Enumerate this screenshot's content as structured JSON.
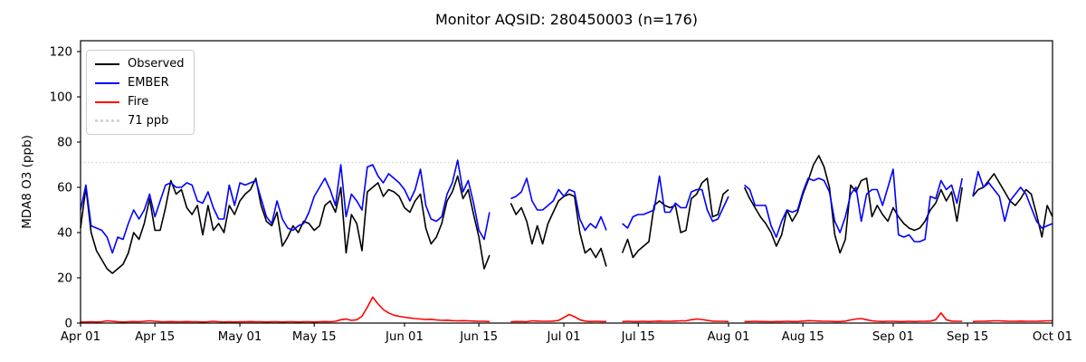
{
  "chart_data": {
    "type": "line",
    "title": "Monitor AQSID: 280450003 (n=176)",
    "ylabel": "MDA8 O3 (ppb)",
    "xlabel": "",
    "grid": false,
    "x_unit": "daily values; x index 0 = Apr 01, 183 = Oct 01; null = missing day",
    "ylim": [
      0,
      124.8
    ],
    "yticks": [
      0,
      20,
      40,
      60,
      80,
      100,
      120
    ],
    "x_ticks": [
      {
        "label": "Apr 01",
        "day": 0
      },
      {
        "label": "Apr 15",
        "day": 14
      },
      {
        "label": "May 01",
        "day": 30
      },
      {
        "label": "May 15",
        "day": 44
      },
      {
        "label": "Jun 01",
        "day": 61
      },
      {
        "label": "Jun 15",
        "day": 75
      },
      {
        "label": "Jul 01",
        "day": 91
      },
      {
        "label": "Jul 15",
        "day": 105
      },
      {
        "label": "Aug 01",
        "day": 122
      },
      {
        "label": "Aug 15",
        "day": 136
      },
      {
        "label": "Sep 01",
        "day": 153
      },
      {
        "label": "Sep 15",
        "day": 167
      },
      {
        "label": "Oct 01",
        "day": 183
      }
    ],
    "threshold": {
      "label": "71 ppb",
      "value": 71,
      "color": "#d3d3d3",
      "style": "dotted"
    },
    "legend": {
      "position": "upper left",
      "items": [
        {
          "label": "Observed",
          "color": "#000000",
          "style": "solid"
        },
        {
          "label": "EMBER",
          "color": "#0000ff",
          "style": "solid"
        },
        {
          "label": "Fire",
          "color": "#ff0000",
          "style": "solid"
        },
        {
          "label": "71 ppb",
          "color": "#d3d3d3",
          "style": "dotted"
        }
      ]
    },
    "series": [
      {
        "name": "Observed",
        "color": "#000000",
        "values": [
          42,
          60,
          40,
          32,
          28,
          24,
          22,
          24,
          26,
          31,
          40,
          37,
          44,
          55,
          41,
          41,
          51,
          63,
          57,
          59,
          51,
          48,
          52,
          39,
          52,
          41,
          44,
          40,
          52,
          48,
          54,
          57,
          59,
          64,
          52,
          45,
          43,
          49,
          34,
          38,
          43,
          40,
          45,
          44,
          41,
          43,
          52,
          54,
          49,
          60,
          31,
          48,
          44,
          32,
          58,
          60,
          62,
          56,
          59,
          58,
          56,
          51,
          49,
          54,
          57,
          42,
          35,
          38,
          44,
          54,
          58,
          65,
          55,
          59,
          48,
          38,
          24,
          30,
          null,
          null,
          null,
          53,
          48,
          51,
          45,
          35,
          43,
          35,
          44,
          49,
          54,
          56,
          57,
          56,
          40,
          31,
          33,
          29,
          33,
          25,
          null,
          null,
          31,
          37,
          29,
          32,
          34,
          36,
          52,
          54,
          52,
          51,
          52,
          40,
          41,
          55,
          57,
          62,
          64,
          47,
          48,
          57,
          59,
          null,
          null,
          60,
          55,
          51,
          47,
          44,
          40,
          34,
          39,
          50,
          45,
          49,
          57,
          63,
          70,
          74,
          69,
          60,
          39,
          31,
          37,
          61,
          58,
          63,
          64,
          47,
          52,
          48,
          45,
          51,
          47,
          44,
          42,
          41,
          42,
          45,
          50,
          53,
          59,
          54,
          58,
          45,
          60,
          null,
          56,
          59,
          60,
          63,
          66,
          62,
          58,
          54,
          52,
          55,
          59,
          57,
          48,
          38,
          52,
          47
        ]
      },
      {
        "name": "EMBER",
        "color": "#0000ff",
        "values": [
          50,
          61,
          43,
          42,
          41,
          38,
          31,
          38,
          37,
          44,
          50,
          46,
          50,
          57,
          47,
          54,
          61,
          62,
          60,
          60,
          62,
          61,
          54,
          53,
          58,
          51,
          46,
          46,
          61,
          52,
          62,
          61,
          62,
          63,
          55,
          47,
          44,
          54,
          46,
          42,
          41,
          43,
          44,
          49,
          56,
          60,
          64,
          59,
          52,
          70,
          47,
          57,
          54,
          50,
          69,
          70,
          65,
          62,
          66,
          64,
          62,
          59,
          54,
          59,
          68,
          52,
          46,
          45,
          47,
          57,
          62,
          72,
          58,
          63,
          53,
          41,
          37,
          49,
          null,
          null,
          null,
          55,
          56,
          58,
          64,
          54,
          50,
          50,
          52,
          54,
          59,
          56,
          59,
          58,
          46,
          41,
          44,
          42,
          47,
          41,
          null,
          null,
          44,
          42,
          47,
          48,
          48,
          49,
          50,
          65,
          49,
          49,
          53,
          51,
          51,
          58,
          59,
          59,
          50,
          45,
          46,
          51,
          56,
          null,
          null,
          61,
          59,
          52,
          52,
          52,
          43,
          38,
          45,
          50,
          49,
          50,
          58,
          64,
          63,
          64,
          63,
          58,
          45,
          40,
          47,
          57,
          60,
          45,
          57,
          59,
          59,
          52,
          60,
          68,
          39,
          38,
          39,
          36,
          36,
          37,
          56,
          55,
          63,
          59,
          61,
          53,
          64,
          null,
          56,
          67,
          60,
          62,
          59,
          56,
          45,
          54,
          57,
          60,
          57,
          51,
          45,
          42,
          43,
          44
        ]
      },
      {
        "name": "Fire",
        "color": "#ff0000",
        "values": [
          0.5,
          0.5,
          0.6,
          0.5,
          0.6,
          1.0,
          0.8,
          0.6,
          0.5,
          0.6,
          0.7,
          0.6,
          0.8,
          1.0,
          0.8,
          0.6,
          0.6,
          0.7,
          0.6,
          0.6,
          0.7,
          0.6,
          0.6,
          0.5,
          0.6,
          0.8,
          0.6,
          0.5,
          0.6,
          0.5,
          0.6,
          0.6,
          0.7,
          0.6,
          0.6,
          0.5,
          0.6,
          0.6,
          0.5,
          0.6,
          0.6,
          0.5,
          0.6,
          0.6,
          0.5,
          0.6,
          0.7,
          0.6,
          0.8,
          1.5,
          1.8,
          1.2,
          1.5,
          3.0,
          7.0,
          11.5,
          8.5,
          6.0,
          4.5,
          3.5,
          3.0,
          2.6,
          2.3,
          2.0,
          1.8,
          1.6,
          1.7,
          1.4,
          1.2,
          1.3,
          1.1,
          1.0,
          1.1,
          1.0,
          0.9,
          0.8,
          0.8,
          0.7,
          null,
          null,
          null,
          0.6,
          0.7,
          0.7,
          0.6,
          1.0,
          0.9,
          0.8,
          0.8,
          0.9,
          1.2,
          2.5,
          3.8,
          2.8,
          1.5,
          0.9,
          0.7,
          0.8,
          0.7,
          0.7,
          null,
          null,
          0.7,
          0.8,
          0.7,
          0.7,
          0.8,
          0.7,
          0.8,
          0.9,
          0.8,
          0.8,
          0.9,
          1.0,
          1.0,
          1.5,
          1.8,
          1.6,
          1.2,
          0.9,
          0.8,
          0.8,
          0.7,
          null,
          null,
          0.7,
          0.7,
          0.8,
          0.7,
          0.7,
          0.6,
          0.7,
          0.7,
          0.8,
          0.7,
          0.7,
          0.9,
          1.1,
          1.0,
          0.9,
          0.8,
          0.8,
          0.7,
          0.7,
          0.9,
          1.4,
          1.8,
          2.0,
          1.5,
          1.0,
          0.8,
          0.7,
          0.8,
          0.8,
          0.7,
          0.7,
          0.8,
          0.7,
          0.8,
          0.8,
          0.9,
          1.5,
          4.5,
          1.5,
          0.9,
          0.8,
          0.8,
          null,
          0.7,
          0.8,
          0.8,
          0.9,
          1.0,
          1.0,
          0.9,
          0.8,
          0.8,
          0.9,
          0.8,
          0.8,
          0.8,
          0.9,
          1.0,
          1.0
        ]
      }
    ]
  }
}
